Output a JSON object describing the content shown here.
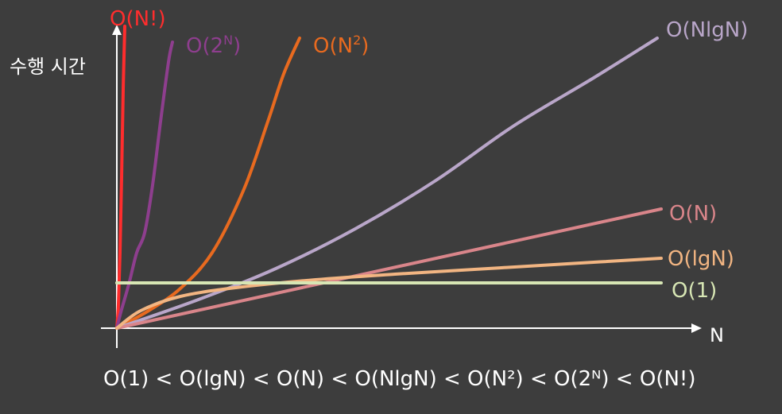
{
  "chart_data": {
    "type": "line",
    "ylabel": "수행 시간",
    "xlabel": "N",
    "series": [
      {
        "name": "O(N!)",
        "label_main": "O(N!)",
        "label_sup": "",
        "label_tail": "",
        "color": "#ff2d2d",
        "x": [
          0,
          2,
          4,
          6,
          8,
          10
        ],
        "y": [
          0,
          30,
          95,
          190,
          300,
          380
        ]
      },
      {
        "name": "O(2^N)",
        "label_main": "O(2",
        "label_sup": "N",
        "label_tail": ")",
        "color": "#8e3e8e",
        "x": [
          0,
          5,
          15,
          25,
          35,
          45,
          55,
          65,
          70
        ],
        "y": [
          0,
          20,
          55,
          95,
          120,
          180,
          260,
          335,
          360
        ]
      },
      {
        "name": "O(N^2)",
        "label_main": "O(N",
        "label_sup": "2",
        "label_tail": ")",
        "color": "#e86a1f",
        "x": [
          0,
          40,
          80,
          120,
          160,
          190,
          210,
          230
        ],
        "y": [
          0,
          22,
          50,
          95,
          175,
          260,
          320,
          365
        ]
      },
      {
        "name": "O(NlgN)",
        "label_main": "O(NlgN)",
        "label_sup": "",
        "label_tail": "",
        "color": "#b9a6c9",
        "x": [
          0,
          100,
          200,
          300,
          400,
          500,
          600,
          680
        ],
        "y": [
          0,
          35,
          75,
          125,
          185,
          255,
          315,
          365
        ]
      },
      {
        "name": "O(N)",
        "label_main": "O(N)",
        "label_sup": "",
        "label_tail": "",
        "color": "#d9858a",
        "x": [
          0,
          685
        ],
        "y": [
          0,
          150
        ]
      },
      {
        "name": "O(lgN)",
        "label_main": "O(lgN)",
        "label_sup": "",
        "label_tail": "",
        "color": "#f2b582",
        "x": [
          0,
          30,
          80,
          150,
          250,
          350,
          450,
          550,
          685
        ],
        "y": [
          0,
          22,
          40,
          51,
          61,
          68,
          74,
          80,
          88
        ]
      },
      {
        "name": "O(1)",
        "label_main": "O(1)",
        "label_sup": "",
        "label_tail": "",
        "color": "#d7e6b4",
        "x": [
          0,
          685
        ],
        "y": [
          57,
          57
        ]
      }
    ],
    "order_summary": "O(1) < O(lgN) < O(N) < O(NlgN) < O(N²) < O(2ᴺ) < O(N!)"
  }
}
